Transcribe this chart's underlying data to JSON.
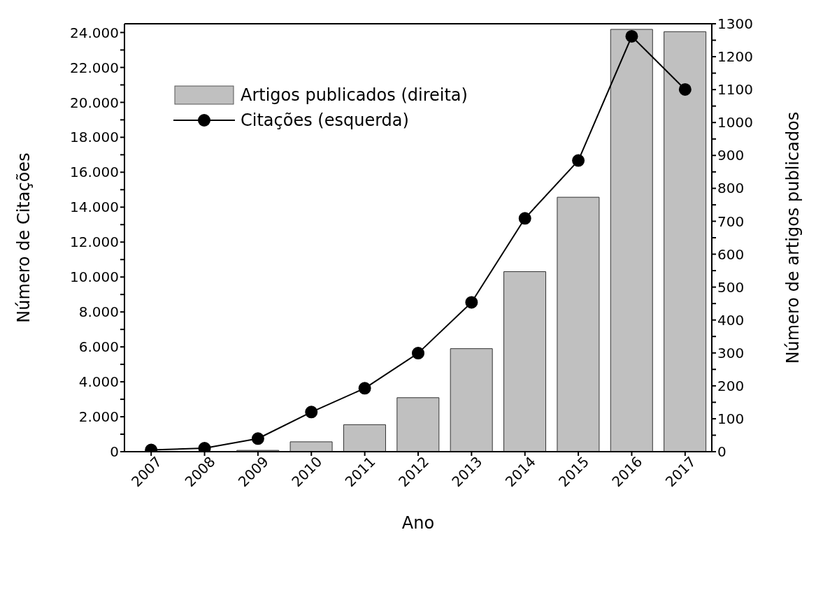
{
  "chart_data": {
    "type": "bar",
    "xlabel": "Ano",
    "ylabel": "Número de Citações",
    "y2label": "Número de artigos publicados",
    "categories": [
      "2007",
      "2008",
      "2009",
      "2010",
      "2011",
      "2012",
      "2013",
      "2014",
      "2015",
      "2016",
      "2017"
    ],
    "series": [
      {
        "name": "Artigos publicados (direita)",
        "axis": "y2",
        "color": "#c0c0c0",
        "values": [
          0,
          1,
          4,
          30,
          82,
          164,
          313,
          547,
          773,
          1283,
          1276
        ]
      },
      {
        "name": "Citações (esquerda)",
        "type": "line",
        "color": "#000000",
        "values": [
          100,
          200,
          750,
          2270,
          3630,
          5640,
          8550,
          13360,
          16670,
          23780,
          20740
        ]
      }
    ],
    "ylim": [
      0,
      24500
    ],
    "yticks": [
      0,
      {
        "value": 1000,
        "label": null
      },
      {
        "value": 2000,
        "label": "2.000"
      },
      {
        "value": 3000,
        "label": null
      },
      {
        "value": 4000,
        "label": "4.000"
      },
      {
        "value": 5000,
        "label": null
      },
      {
        "value": 6000,
        "label": "6.000"
      },
      {
        "value": 7000,
        "label": null
      },
      {
        "value": 8000,
        "label": "8.000"
      },
      {
        "value": 9000,
        "label": null
      },
      {
        "value": 10000,
        "label": "10.000"
      },
      {
        "value": 11000,
        "label": null
      },
      {
        "value": 12000,
        "label": "12.000"
      },
      {
        "value": 13000,
        "label": null
      },
      {
        "value": 14000,
        "label": "14.000"
      },
      {
        "value": 15000,
        "label": null
      },
      {
        "value": 16000,
        "label": "16.000"
      },
      {
        "value": 17000,
        "label": null
      },
      {
        "value": 18000,
        "label": "18.000"
      },
      {
        "value": 19000,
        "label": null
      },
      {
        "value": 20000,
        "label": "20.000"
      },
      {
        "value": 21000,
        "label": null
      },
      {
        "value": 22000,
        "label": "22.000"
      },
      {
        "value": 23000,
        "label": null
      },
      {
        "value": 24000,
        "label": "24.000"
      }
    ],
    "y2lim": [
      0,
      1300
    ],
    "y2ticks": [
      0,
      {
        "value": 50,
        "label": null
      },
      100,
      {
        "value": 150,
        "label": null
      },
      200,
      {
        "value": 250,
        "label": null
      },
      300,
      {
        "value": 350,
        "label": null
      },
      400,
      {
        "value": 450,
        "label": null
      },
      500,
      {
        "value": 550,
        "label": null
      },
      600,
      {
        "value": 650,
        "label": null
      },
      700,
      {
        "value": 750,
        "label": null
      },
      800,
      {
        "value": 850,
        "label": null
      },
      900,
      {
        "value": 950,
        "label": null
      },
      1000,
      {
        "value": 1050,
        "label": null
      },
      1100,
      {
        "value": 1150,
        "label": null
      },
      1200,
      {
        "value": 1250,
        "label": null
      },
      1300
    ],
    "legend": "top left",
    "marker": "circle",
    "line_style": "solid",
    "grid": false
  }
}
